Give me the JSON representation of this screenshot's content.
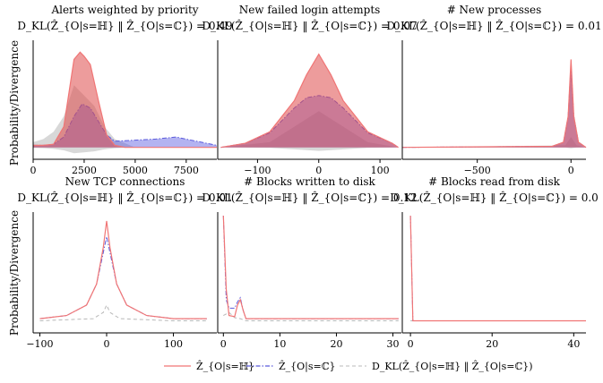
{
  "figure": {
    "ylabel": "Probability/Divergence",
    "legend": [
      {
        "label": "Ẑ_{O|s=ℍ}",
        "color": "#f07575",
        "style": "solid"
      },
      {
        "label": "Ẑ_{O|s=ℂ}",
        "color": "#5b5bdc",
        "style": "dashdot"
      },
      {
        "label": "D_KL(Ẑ_{O|s=ℍ} ‖ Ẑ_{O|s=ℂ})",
        "color": "#c8c8c8",
        "style": "dashed"
      }
    ]
  },
  "chart_data": [
    {
      "type": "area",
      "title": "Alerts weighted by priority",
      "subtitle": "D_KL(Ẑ_{O|s=ℍ} ‖ Ẑ_{O|s=ℂ}) = 0.49",
      "xlim": [
        0,
        9000
      ],
      "xticks": [
        "0",
        "2500",
        "5000",
        "7500"
      ],
      "xtick_values": [
        0,
        2500,
        5000,
        7500
      ],
      "series": [
        {
          "name": "Ẑ_{O|s=ℍ}",
          "x": [
            0,
            500,
            1000,
            1500,
            2000,
            2300,
            2500,
            2800,
            3200,
            3600,
            4000,
            4500,
            6000,
            9000
          ],
          "y": [
            0.02,
            0.02,
            0.03,
            0.2,
            0.85,
            0.92,
            0.88,
            0.8,
            0.45,
            0.12,
            0.02,
            0.0,
            0.0,
            0.0
          ]
        },
        {
          "name": "Ẑ_{O|s=ℂ}",
          "x": [
            0,
            500,
            1000,
            1500,
            2000,
            2400,
            2800,
            3200,
            3600,
            4000,
            5000,
            6000,
            7000,
            8000,
            9000
          ],
          "y": [
            0.02,
            0.02,
            0.03,
            0.1,
            0.3,
            0.42,
            0.38,
            0.25,
            0.12,
            0.06,
            0.07,
            0.08,
            0.1,
            0.06,
            0.02
          ]
        },
        {
          "name": "D_KL",
          "x": [
            0,
            500,
            1000,
            1500,
            2000,
            2500,
            3000,
            3500,
            4000,
            5000,
            9000
          ],
          "y": [
            0.05,
            0.08,
            0.15,
            0.3,
            0.6,
            0.5,
            0.4,
            0.2,
            0.08,
            0.0,
            0.0
          ]
        }
      ]
    },
    {
      "type": "area",
      "title": "New failed login attempts",
      "subtitle": "D_KL(Ẑ_{O|s=ℍ} ‖ Ẑ_{O|s=ℂ}) = 0.07",
      "xlim": [
        -165,
        135
      ],
      "xticks": [
        "−100",
        "0",
        "100"
      ],
      "xtick_values": [
        -100,
        0,
        100
      ],
      "series": [
        {
          "name": "Ẑ_{O|s=ℍ}",
          "x": [
            -160,
            -120,
            -80,
            -40,
            -20,
            0,
            20,
            40,
            80,
            120,
            130
          ],
          "y": [
            0.0,
            0.04,
            0.15,
            0.45,
            0.7,
            0.9,
            0.7,
            0.45,
            0.15,
            0.04,
            0.0
          ]
        },
        {
          "name": "Ẑ_{O|s=ℂ}",
          "x": [
            -160,
            -120,
            -80,
            -40,
            -20,
            0,
            20,
            40,
            80,
            120,
            130
          ],
          "y": [
            0.0,
            0.04,
            0.14,
            0.38,
            0.48,
            0.5,
            0.48,
            0.38,
            0.14,
            0.04,
            0.0
          ]
        },
        {
          "name": "D_KL",
          "x": [
            -160,
            -80,
            -40,
            0,
            40,
            80,
            130
          ],
          "y": [
            0.0,
            0.05,
            0.2,
            0.35,
            0.2,
            0.05,
            0.0
          ]
        }
      ]
    },
    {
      "type": "area",
      "title": "# New processes",
      "subtitle": "D_KL(Ẑ_{O|s=ℍ} ‖ Ẑ_{O|s=ℂ}) = 0.01",
      "xlim": [
        -900,
        80
      ],
      "xticks": [
        "−500",
        "0"
      ],
      "xtick_values": [
        -500,
        0
      ],
      "series": [
        {
          "name": "Ẑ_{O|s=ℍ}",
          "x": [
            -900,
            -100,
            -40,
            -15,
            0,
            15,
            40,
            80
          ],
          "y": [
            0.0,
            0.01,
            0.05,
            0.3,
            0.85,
            0.3,
            0.05,
            0.0
          ]
        },
        {
          "name": "Ẑ_{O|s=ℂ}",
          "x": [
            -900,
            -100,
            -40,
            -15,
            0,
            15,
            40,
            80
          ],
          "y": [
            0.0,
            0.01,
            0.05,
            0.3,
            0.8,
            0.3,
            0.05,
            0.0
          ]
        },
        {
          "name": "D_KL",
          "x": [
            -900,
            -30,
            0,
            30,
            80
          ],
          "y": [
            0.0,
            0.02,
            0.1,
            0.02,
            0.0
          ]
        }
      ]
    },
    {
      "type": "line",
      "title": "New TCP connections",
      "subtitle": "D_KL(Ẑ_{O|s=ℍ} ‖ Ẑ_{O|s=ℂ}) = 0.01",
      "xlim": [
        -110,
        165
      ],
      "xticks": [
        "−100",
        "0",
        "100"
      ],
      "xtick_values": [
        -100,
        0,
        100
      ],
      "series": [
        {
          "name": "Ẑ_{O|s=ℍ}",
          "x": [
            -100,
            -60,
            -30,
            -15,
            -5,
            0,
            5,
            15,
            30,
            60,
            100,
            150
          ],
          "y": [
            0.02,
            0.05,
            0.15,
            0.35,
            0.7,
            0.95,
            0.7,
            0.35,
            0.15,
            0.05,
            0.02,
            0.02
          ]
        },
        {
          "name": "Ẑ_{O|s=ℂ}",
          "x": [
            -100,
            -60,
            -30,
            -15,
            -5,
            0,
            5,
            15,
            30,
            60,
            100,
            150
          ],
          "y": [
            0.02,
            0.05,
            0.15,
            0.35,
            0.65,
            0.8,
            0.65,
            0.35,
            0.15,
            0.05,
            0.02,
            0.02
          ]
        },
        {
          "name": "D_KL",
          "x": [
            -100,
            -20,
            -5,
            0,
            5,
            20,
            100,
            150
          ],
          "y": [
            0.0,
            0.02,
            0.08,
            0.15,
            0.08,
            0.02,
            0.0,
            0.0
          ]
        }
      ]
    },
    {
      "type": "line",
      "title": "# Blocks written to disk",
      "subtitle": "D_KL(Ẑ_{O|s=ℍ} ‖ Ẑ_{O|s=ℂ}) = 0.12",
      "xlim": [
        -1,
        31.5
      ],
      "xticks": [
        "0",
        "10",
        "20",
        "30"
      ],
      "xtick_values": [
        0,
        10,
        20,
        30
      ],
      "series": [
        {
          "name": "Ẑ_{O|s=ℍ}",
          "x": [
            0,
            0.5,
            1,
            2,
            2.5,
            3,
            3.5,
            4,
            5,
            31
          ],
          "y": [
            1.0,
            0.3,
            0.05,
            0.04,
            0.15,
            0.2,
            0.1,
            0.02,
            0.02,
            0.02
          ]
        },
        {
          "name": "Ẑ_{O|s=ℂ}",
          "x": [
            0,
            0.5,
            1,
            2,
            2.5,
            3,
            3.5,
            4,
            5,
            31
          ],
          "y": [
            1.0,
            0.2,
            0.12,
            0.12,
            0.18,
            0.22,
            0.1,
            0.02,
            0.02,
            0.02
          ]
        },
        {
          "name": "D_KL",
          "x": [
            0,
            1,
            2,
            3,
            4,
            31
          ],
          "y": [
            0.05,
            0.08,
            0.03,
            0.02,
            0.0,
            0.0
          ]
        }
      ]
    },
    {
      "type": "line",
      "title": "# Blocks read from disk",
      "subtitle": "D_KL(Ẑ_{O|s=ℍ} ‖ Ẑ_{O|s=ℂ}) = 0.0",
      "xlim": [
        -2,
        43
      ],
      "xticks": [
        "0",
        "20",
        "40"
      ],
      "xtick_values": [
        0,
        20,
        40
      ],
      "series": [
        {
          "name": "Ẑ_{O|s=ℍ}",
          "x": [
            0,
            0.6,
            1,
            43
          ],
          "y": [
            1.0,
            0.0,
            0.0,
            0.0
          ]
        },
        {
          "name": "Ẑ_{O|s=ℂ}",
          "x": [
            0,
            0.6,
            1,
            43
          ],
          "y": [
            1.0,
            0.0,
            0.0,
            0.0
          ]
        },
        {
          "name": "D_KL",
          "x": [
            0,
            43
          ],
          "y": [
            0.0,
            0.0
          ]
        }
      ]
    }
  ]
}
